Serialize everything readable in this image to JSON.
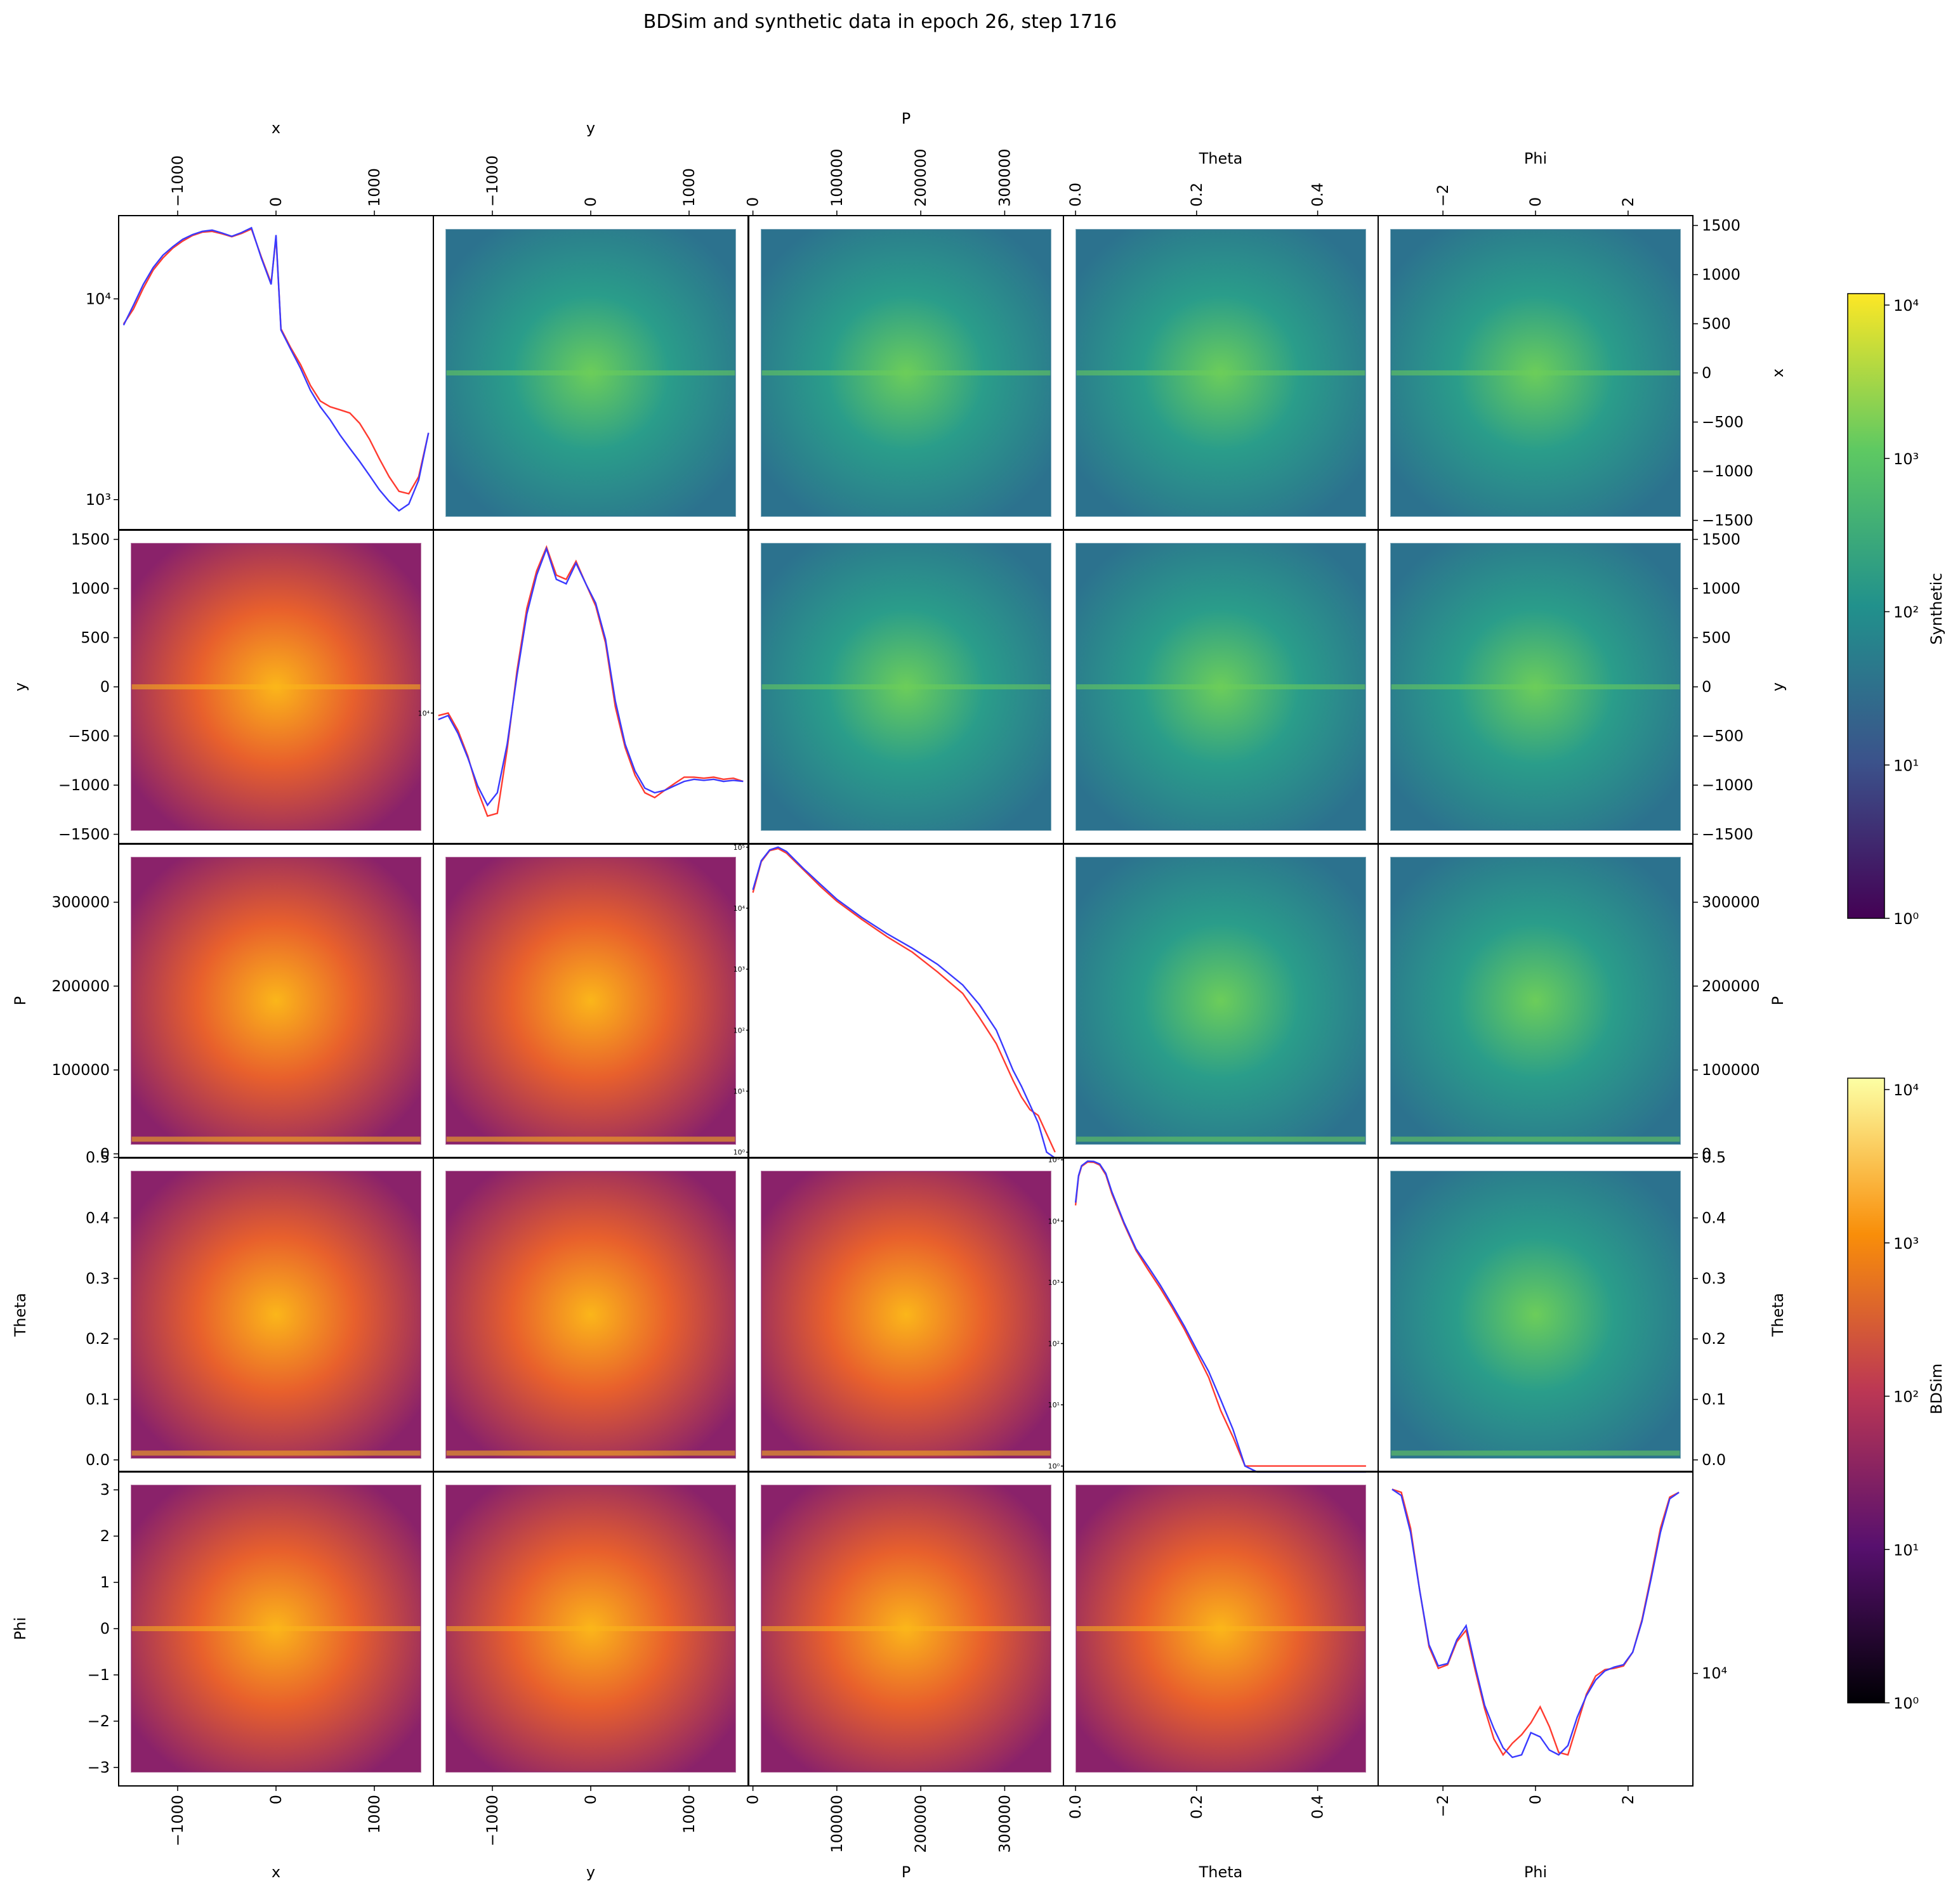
{
  "figure": {
    "title": "BDSim and synthetic data in epoch 26, step 1716"
  },
  "chart_data": {
    "type": "heatmap",
    "variables": [
      "x",
      "y",
      "P",
      "Theta",
      "Phi"
    ],
    "ranges": {
      "x": [
        -1600,
        1600
      ],
      "y": [
        -1600,
        1600
      ],
      "P": [
        -5000,
        370000
      ],
      "Theta": [
        -0.02,
        0.5
      ],
      "Phi": [
        -3.4,
        3.4
      ]
    },
    "ticks": {
      "x": [
        -1000,
        0,
        1000
      ],
      "y": [
        -1000,
        0,
        1000
      ],
      "P": [
        0,
        100000,
        200000,
        300000
      ],
      "Theta": [
        0.0,
        0.2,
        0.4
      ],
      "Phi": [
        -2,
        0,
        2
      ]
    },
    "tick_labels": {
      "x": [
        "−1000",
        "0",
        "1000"
      ],
      "y": [
        "−1000",
        "0",
        "1000"
      ],
      "P": [
        "0",
        "100000",
        "200000",
        "300000"
      ],
      "Theta": [
        "0.0",
        "0.2",
        "0.4"
      ],
      "Phi": [
        "−2",
        "0",
        "2"
      ]
    },
    "row_ticks": {
      "x": [
        -1500,
        -1000,
        -500,
        0,
        500,
        1000,
        1500
      ],
      "y": [
        -1500,
        -1000,
        -500,
        0,
        500,
        1000,
        1500
      ],
      "P": [
        0,
        100000,
        200000,
        300000
      ],
      "Theta": [
        0.0,
        0.1,
        0.2,
        0.3,
        0.4,
        0.5
      ],
      "Phi": [
        -3,
        -2,
        -1,
        0,
        1,
        2,
        3
      ]
    },
    "row_tick_labels": {
      "x": [
        "−1500",
        "−1000",
        "−500",
        "0",
        "500",
        "1000",
        "1500"
      ],
      "y": [
        "−1500",
        "−1000",
        "−500",
        "0",
        "500",
        "1000",
        "1500"
      ],
      "P": [
        "0",
        "100000",
        "200000",
        "300000"
      ],
      "Theta": [
        "0.0",
        "0.1",
        "0.2",
        "0.3",
        "0.4",
        "0.5"
      ],
      "Phi": [
        "−3",
        "−2",
        "−1",
        "0",
        "1",
        "2",
        "3"
      ]
    },
    "upper_triangle": "Synthetic (viridis, log color scale)",
    "lower_triangle": "BDSim (inferno, log color scale)",
    "diagonal": "1D histograms on log y scale (red = BDSim, blue = Synthetic)",
    "histograms": {
      "x": {
        "ylabels": [
          "10⁴",
          "10³"
        ],
        "x": [
          -1550,
          -1450,
          -1350,
          -1250,
          -1150,
          -1050,
          -950,
          -850,
          -750,
          -650,
          -550,
          -450,
          -350,
          -250,
          -150,
          -50,
          0,
          50,
          150,
          250,
          350,
          450,
          550,
          650,
          750,
          850,
          950,
          1050,
          1150,
          1250,
          1350,
          1450,
          1550
        ],
        "synthetic": [
          7400,
          9300,
          11800,
          14300,
          16500,
          18200,
          19800,
          20900,
          21700,
          22000,
          21300,
          20500,
          21400,
          22600,
          16000,
          11800,
          20800,
          7000,
          5600,
          4500,
          3500,
          2900,
          2500,
          2100,
          1800,
          1550,
          1320,
          1120,
          980,
          880,
          950,
          1250,
          2150
        ],
        "bdsim": [
          7500,
          8900,
          11300,
          13900,
          16000,
          17900,
          19400,
          20700,
          21500,
          21700,
          21100,
          20400,
          21200,
          22300,
          16200,
          12000,
          20300,
          7100,
          5700,
          4700,
          3700,
          3100,
          2900,
          2800,
          2700,
          2400,
          2000,
          1600,
          1300,
          1100,
          1070,
          1300,
          2150
        ]
      },
      "y": {
        "ylabels": [
          "10⁴"
        ],
        "x": [
          -1550,
          -1450,
          -1350,
          -1250,
          -1150,
          -1050,
          -950,
          -850,
          -750,
          -650,
          -550,
          -450,
          -350,
          -250,
          -150,
          -50,
          50,
          150,
          250,
          350,
          450,
          550,
          650,
          750,
          850,
          950,
          1050,
          1150,
          1250,
          1350,
          1450,
          1550
        ],
        "synthetic": [
          9500,
          9800,
          8500,
          7000,
          5600,
          4800,
          5300,
          7800,
          13500,
          22000,
          30000,
          37000,
          29000,
          28000,
          33000,
          28000,
          24000,
          18000,
          11000,
          7800,
          6300,
          5500,
          5300,
          5400,
          5600,
          5800,
          5900,
          5850,
          5900,
          5800,
          5850,
          5800
        ],
        "bdsim": [
          9800,
          10000,
          8700,
          7100,
          5400,
          4400,
          4500,
          7500,
          14000,
          23000,
          31000,
          37500,
          30000,
          29000,
          33500,
          28000,
          23500,
          17500,
          10500,
          7600,
          6100,
          5300,
          5100,
          5400,
          5700,
          6000,
          6000,
          5950,
          6000,
          5900,
          5950,
          5800
        ]
      },
      "P": {
        "ylabels": [
          "10⁰",
          "10¹",
          "10²",
          "10³",
          "10⁴",
          "10⁵"
        ],
        "x": [
          0,
          10000,
          20000,
          30000,
          40000,
          60000,
          80000,
          100000,
          130000,
          160000,
          190000,
          220000,
          250000,
          270000,
          290000,
          310000,
          320000,
          330000,
          340000,
          350000,
          360000
        ],
        "synthetic": [
          20000,
          60000,
          90000,
          100000,
          85000,
          45000,
          25000,
          14000,
          7000,
          3800,
          2200,
          1200,
          550,
          260,
          100,
          22,
          12,
          6,
          3,
          1,
          0
        ],
        "bdsim": [
          18000,
          58000,
          88000,
          95000,
          80000,
          43000,
          23000,
          13000,
          6500,
          3400,
          1900,
          900,
          400,
          160,
          60,
          15,
          8,
          5,
          4,
          2,
          1
        ]
      },
      "Theta": {
        "ylabels": [
          "10⁰",
          "10¹",
          "10²",
          "10³",
          "10⁴",
          "10⁵"
        ],
        "x": [
          0.0,
          0.005,
          0.01,
          0.02,
          0.03,
          0.04,
          0.05,
          0.06,
          0.08,
          0.1,
          0.12,
          0.14,
          0.16,
          0.18,
          0.2,
          0.22,
          0.24,
          0.26,
          0.28,
          0.3,
          0.35,
          0.45,
          0.48
        ],
        "synthetic": [
          20000,
          55000,
          80000,
          95000,
          94000,
          85000,
          60000,
          30000,
          9500,
          3500,
          1800,
          900,
          420,
          190,
          80,
          35,
          12,
          4,
          1,
          0,
          0,
          0,
          0
        ],
        "bdsim": [
          18000,
          53000,
          78000,
          92000,
          91000,
          82000,
          57000,
          28000,
          9000,
          3300,
          1600,
          800,
          380,
          170,
          70,
          28,
          8,
          3,
          1,
          1,
          1,
          1,
          1
        ]
      },
      "Phi": {
        "ylabels": [
          "10⁴"
        ],
        "x": [
          -3.1,
          -2.9,
          -2.7,
          -2.5,
          -2.3,
          -2.1,
          -1.9,
          -1.7,
          -1.5,
          -1.3,
          -1.1,
          -0.9,
          -0.7,
          -0.5,
          -0.3,
          -0.1,
          0.1,
          0.3,
          0.5,
          0.7,
          0.9,
          1.1,
          1.3,
          1.5,
          1.7,
          1.9,
          2.1,
          2.3,
          2.5,
          2.7,
          2.9,
          3.1
        ],
        "synthetic": [
          42000,
          40000,
          30000,
          19000,
          12500,
          10600,
          10800,
          13000,
          14500,
          10500,
          7800,
          6500,
          5600,
          5200,
          5300,
          6300,
          6100,
          5500,
          5300,
          5700,
          7100,
          8400,
          9500,
          10200,
          10500,
          10700,
          11800,
          15000,
          21000,
          30000,
          39000,
          41000
        ],
        "bdsim": [
          42000,
          41000,
          31000,
          19000,
          12300,
          10400,
          10700,
          12800,
          14000,
          10200,
          7600,
          6000,
          5300,
          5800,
          6200,
          6800,
          7700,
          6600,
          5400,
          5300,
          6700,
          8500,
          9800,
          10300,
          10400,
          10600,
          11800,
          15200,
          21500,
          31000,
          39500,
          41000
        ]
      }
    },
    "colorbars": [
      {
        "name": "Synthetic",
        "colormap": "viridis",
        "ticks": [
          "10⁰",
          "10¹",
          "10²",
          "10³",
          "10⁴"
        ]
      },
      {
        "name": "BDSim",
        "colormap": "inferno",
        "ticks": [
          "10⁰",
          "10¹",
          "10²",
          "10³",
          "10⁴"
        ]
      }
    ],
    "colors": {
      "bdsim_line": "#ff3b30",
      "synthetic_line": "#3a3aff"
    }
  }
}
